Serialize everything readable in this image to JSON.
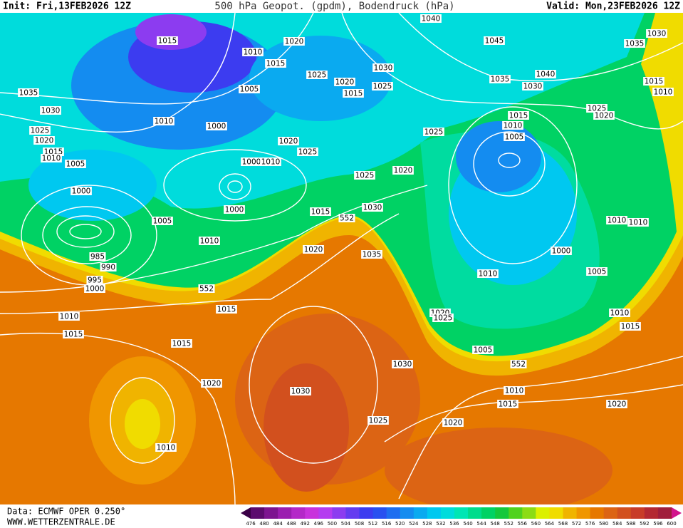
{
  "header": {
    "init": "Init: Fri,13FEB2026 12Z",
    "title": "500 hPa Geopot. (gpdm), Bodendruck (hPa)",
    "valid": "Valid: Mon,23FEB2026 12Z"
  },
  "footer": {
    "source": "Data: ECMWF OPER 0.250°",
    "site": "WWW.WETTERZENTRALE.DE"
  },
  "colorbar": {
    "labels": [
      476,
      480,
      484,
      488,
      492,
      496,
      500,
      504,
      508,
      512,
      516,
      520,
      524,
      528,
      532,
      536,
      540,
      544,
      548,
      552,
      556,
      560,
      564,
      568,
      572,
      576,
      580,
      584,
      588,
      592,
      596,
      600
    ],
    "colors": [
      "#3a0046",
      "#5c0a6e",
      "#7d1490",
      "#9b1eb0",
      "#b428c8",
      "#c832dc",
      "#b43cf0",
      "#8c3cf0",
      "#643cf0",
      "#3c3cf0",
      "#2850f0",
      "#1e6ef0",
      "#148cf0",
      "#0aaaf0",
      "#00c8f0",
      "#00dcdc",
      "#00e6b4",
      "#00dc8c",
      "#00d264",
      "#14c83c",
      "#50d21e",
      "#8cdc14",
      "#dcf000",
      "#f0dc00",
      "#f0b400",
      "#f09600",
      "#e67800",
      "#dc6414",
      "#d2501e",
      "#c83c28",
      "#b42832",
      "#a01e3c",
      "#d2148c"
    ]
  },
  "isobar_labels": [
    1015,
    1020,
    1010,
    1015,
    1040,
    1045,
    1030,
    1035,
    1030,
    1025,
    1025,
    1020,
    1015,
    1040,
    1035,
    1030,
    1015,
    1010,
    1035,
    1005,
    1025,
    1020,
    1030,
    1010,
    1000,
    1015,
    1010,
    1025,
    1005,
    1025,
    1020,
    1020,
    1025,
    1015,
    1010,
    1005,
    1000,
    1010,
    1025,
    1020,
    1000,
    1000,
    1030,
    1015,
    552,
    1005,
    1010,
    1010,
    1010,
    1020,
    1035,
    1000,
    985,
    990,
    1005,
    1010,
    995,
    1000,
    552,
    1015,
    1020,
    1025,
    1010,
    1010,
    1015,
    1015,
    1015,
    1005,
    552,
    1030,
    1020,
    1030,
    1010,
    1015,
    1020,
    1025,
    1020,
    1010
  ]
}
